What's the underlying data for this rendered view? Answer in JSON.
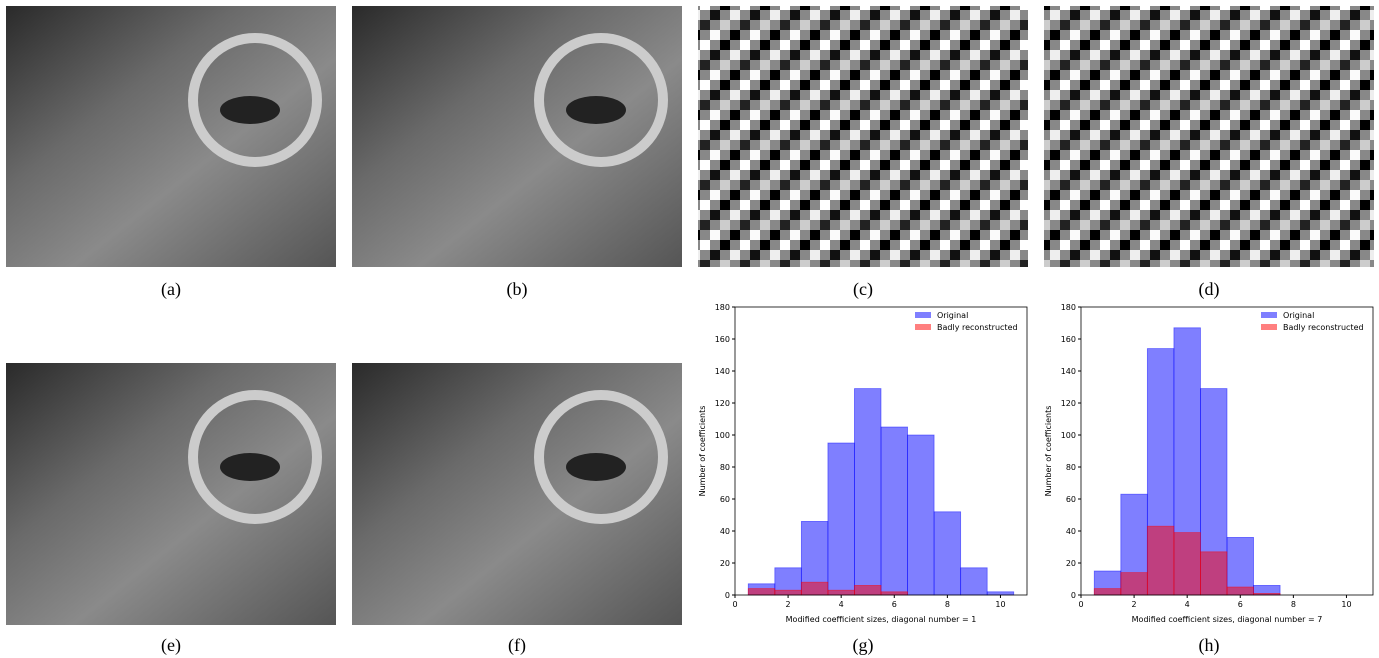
{
  "captions": [
    "(a)",
    "(b)",
    "(c)",
    "(d)",
    "(e)",
    "(f)",
    "(g)",
    "(h)"
  ],
  "chart_data": [
    {
      "type": "histogram",
      "xlabel": "Modified coefficient sizes, diagonal number = 1",
      "ylabel": "Number of coefficients",
      "bins": [
        0.5,
        1.5,
        2.5,
        3.5,
        4.5,
        5.5,
        6.5,
        7.5,
        8.5,
        9.5,
        10.5
      ],
      "series": [
        {
          "name": "Original",
          "color": "#0000ff",
          "values": [
            7,
            17,
            46,
            95,
            129,
            105,
            100,
            52,
            17,
            2
          ]
        },
        {
          "name": "Badly reconstructed",
          "color": "#ff0000",
          "values": [
            4,
            3,
            8,
            3,
            6,
            2,
            0,
            0,
            0,
            0
          ]
        }
      ],
      "alpha": 0.5,
      "xlim": [
        0,
        11
      ],
      "xticks": [
        0,
        2,
        4,
        6,
        8,
        10
      ],
      "ylim": [
        0,
        180
      ],
      "yticks": [
        0,
        20,
        40,
        60,
        80,
        100,
        120,
        140,
        160,
        180
      ],
      "legend": "upper-right"
    },
    {
      "type": "histogram",
      "xlabel": "Modified coefficient sizes, diagonal number = 7",
      "ylabel": "Number of coefficients",
      "bins": [
        0.5,
        1.5,
        2.5,
        3.5,
        4.5,
        5.5,
        6.5,
        7.5
      ],
      "series": [
        {
          "name": "Original",
          "color": "#0000ff",
          "values": [
            15,
            63,
            154,
            167,
            129,
            36,
            6
          ]
        },
        {
          "name": "Badly reconstructed",
          "color": "#ff0000",
          "values": [
            4,
            14,
            43,
            39,
            27,
            5,
            1
          ]
        }
      ],
      "alpha": 0.5,
      "xlim": [
        0,
        11
      ],
      "xticks": [
        0,
        2,
        4,
        6,
        8,
        10
      ],
      "ylim": [
        0,
        180
      ],
      "yticks": [
        0,
        20,
        40,
        60,
        80,
        100,
        120,
        140,
        160,
        180
      ],
      "legend": "upper-right"
    }
  ]
}
